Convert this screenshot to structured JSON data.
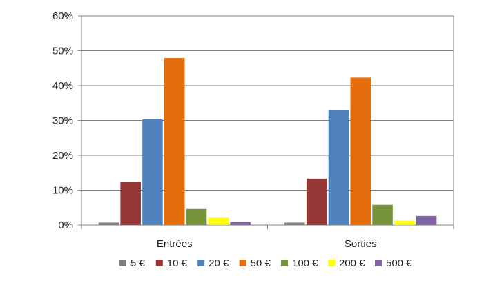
{
  "chart_data": {
    "type": "bar",
    "title": "",
    "xlabel": "",
    "ylabel": "",
    "categories": [
      "Entrées",
      "Sorties"
    ],
    "series": [
      {
        "name": "5 €",
        "color": "#7f7f7f",
        "values": [
          0.7,
          0.7
        ]
      },
      {
        "name": "10 €",
        "color": "#953735",
        "values": [
          12.3,
          13.3
        ]
      },
      {
        "name": "20 €",
        "color": "#4f81bd",
        "values": [
          30.4,
          32.9
        ]
      },
      {
        "name": "50 €",
        "color": "#e46c0a",
        "values": [
          47.9,
          42.3
        ]
      },
      {
        "name": "100 €",
        "color": "#77933c",
        "values": [
          4.6,
          5.8
        ]
      },
      {
        "name": "200 €",
        "color": "#ffff00",
        "values": [
          2.1,
          1.3
        ]
      },
      {
        "name": "500 €",
        "color": "#8064a2",
        "values": [
          0.8,
          2.6
        ]
      }
    ],
    "ylim": [
      0,
      60
    ],
    "yticks": [
      0,
      10,
      20,
      30,
      40,
      50,
      60
    ],
    "ytick_labels": [
      "0%",
      "10%",
      "20%",
      "30%",
      "40%",
      "50%",
      "60%"
    ],
    "grid": true,
    "legend_position": "bottom"
  }
}
